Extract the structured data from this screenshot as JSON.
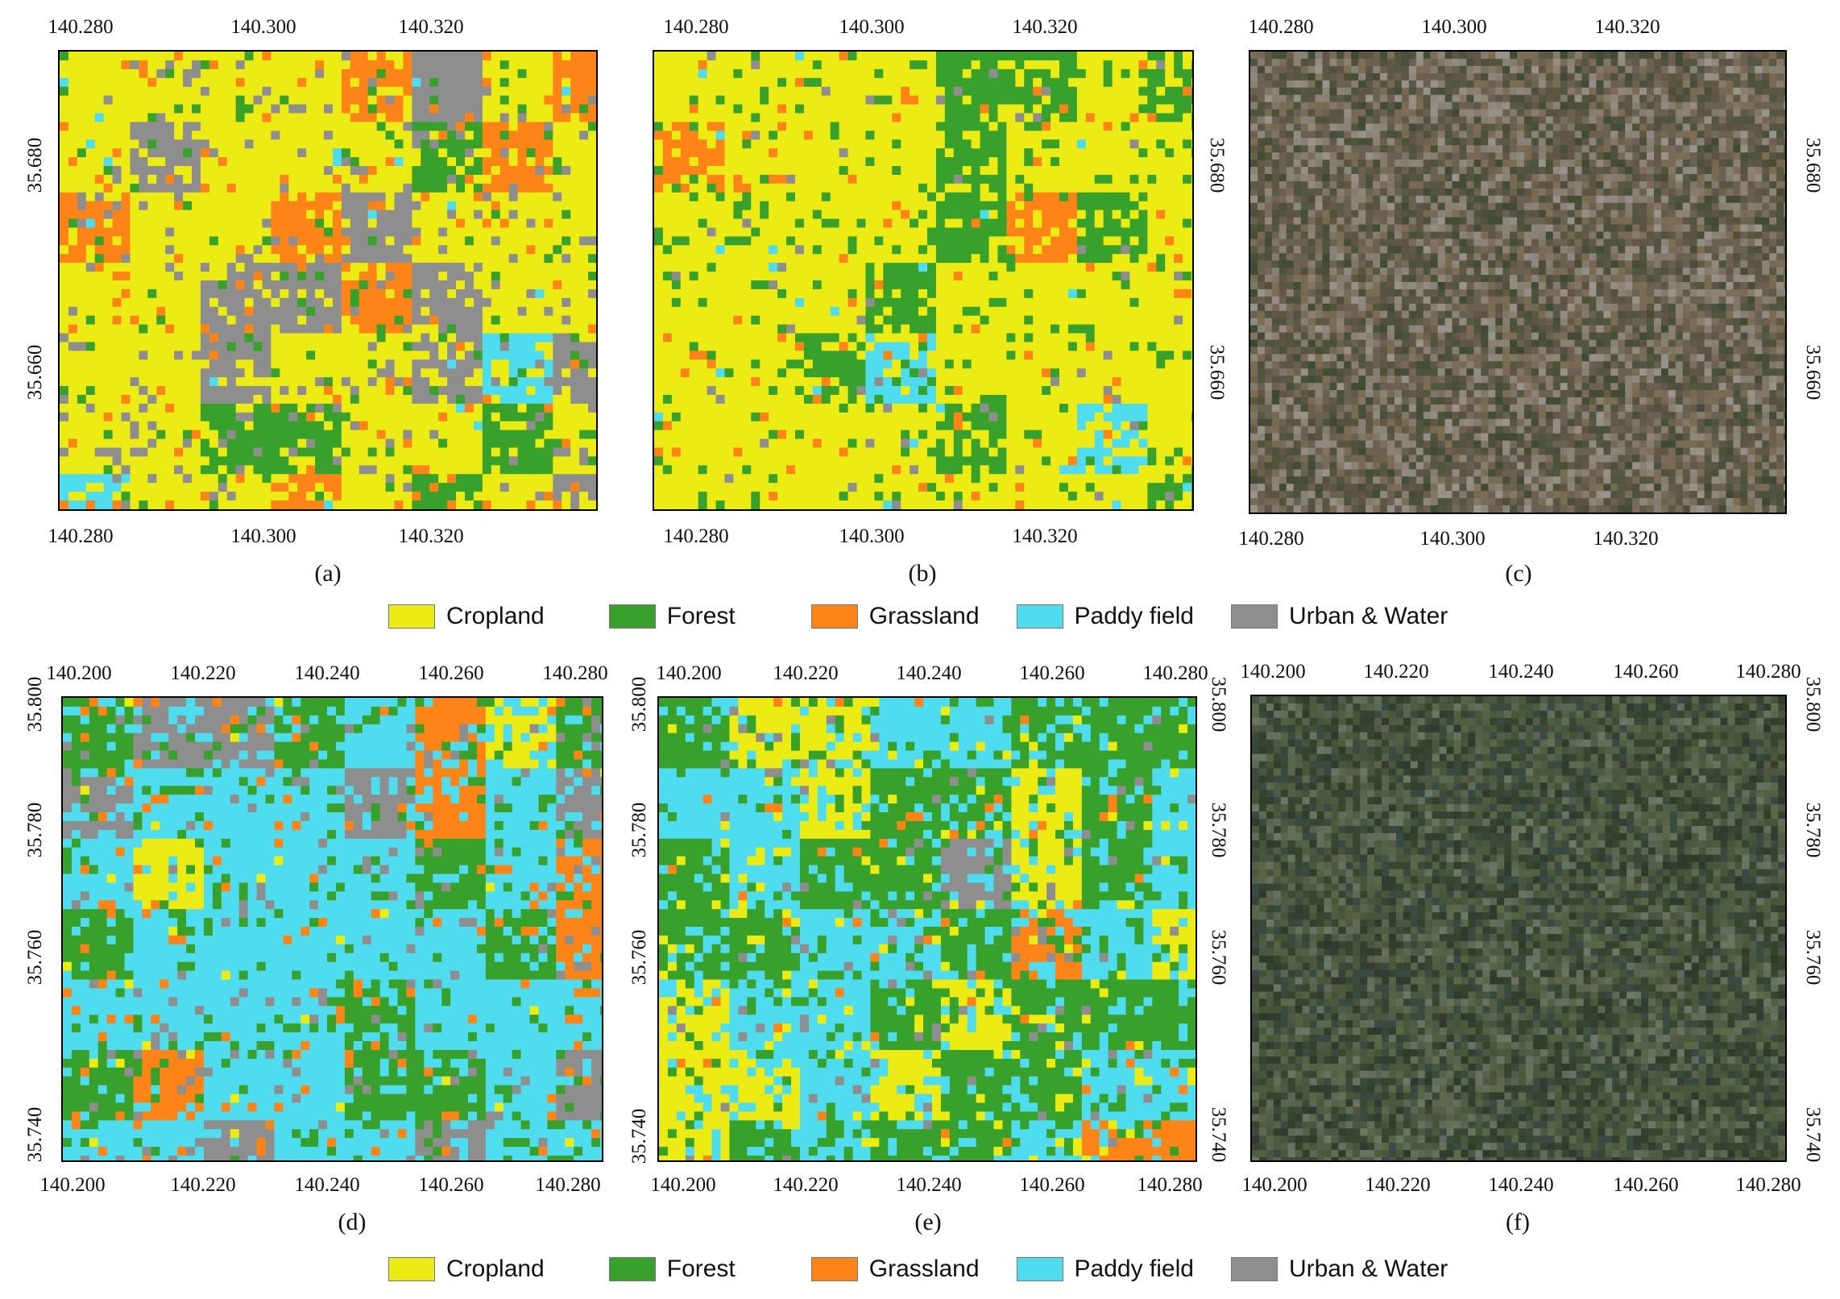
{
  "colors": {
    "cropland": "#ecec14",
    "forest": "#38a12c",
    "grassland": "#ff8417",
    "paddy": "#4fdcef",
    "urban": "#8e8e8e",
    "sat_top": "#6e624f",
    "sat_bottom": "#3e4a35"
  },
  "legend": [
    {
      "label": "Cropland",
      "color": "#ecec14"
    },
    {
      "label": "Forest",
      "color": "#38a12c"
    },
    {
      "label": "Grassland",
      "color": "#ff8417"
    },
    {
      "label": "Paddy field",
      "color": "#4fdcef"
    },
    {
      "label": "Urban & Water",
      "color": "#8e8e8e"
    }
  ],
  "captions": {
    "a": "(a)",
    "b": "(b)",
    "c": "(c)",
    "d": "(d)",
    "e": "(e)",
    "f": "(f)"
  },
  "top_row": {
    "lon_ticks": [
      "140.280",
      "140.300",
      "140.320"
    ],
    "lat_ticks": [
      "35.680",
      "35.660"
    ]
  },
  "bottom_row": {
    "lon_ticks": [
      "140.200",
      "140.220",
      "140.240",
      "140.260",
      "140.280"
    ],
    "lat_ticks": [
      "35.800",
      "35.780",
      "35.760",
      "35.740"
    ]
  },
  "panels": {
    "a": {
      "type": "classification",
      "weights": {
        "cropland": 0.5,
        "forest": 0.12,
        "grassland": 0.13,
        "paddy": 0.02,
        "urban": 0.23
      }
    },
    "b": {
      "type": "classification",
      "weights": {
        "cropland": 0.62,
        "forest": 0.24,
        "grassland": 0.07,
        "paddy": 0.02,
        "urban": 0.05
      }
    },
    "c": {
      "type": "satellite"
    },
    "d": {
      "type": "classification",
      "weights": {
        "cropland": 0.02,
        "forest": 0.24,
        "grassland": 0.12,
        "paddy": 0.5,
        "urban": 0.12
      }
    },
    "e": {
      "type": "classification",
      "weights": {
        "cropland": 0.14,
        "forest": 0.28,
        "grassland": 0.04,
        "paddy": 0.46,
        "urban": 0.08
      }
    },
    "f": {
      "type": "satellite"
    }
  }
}
